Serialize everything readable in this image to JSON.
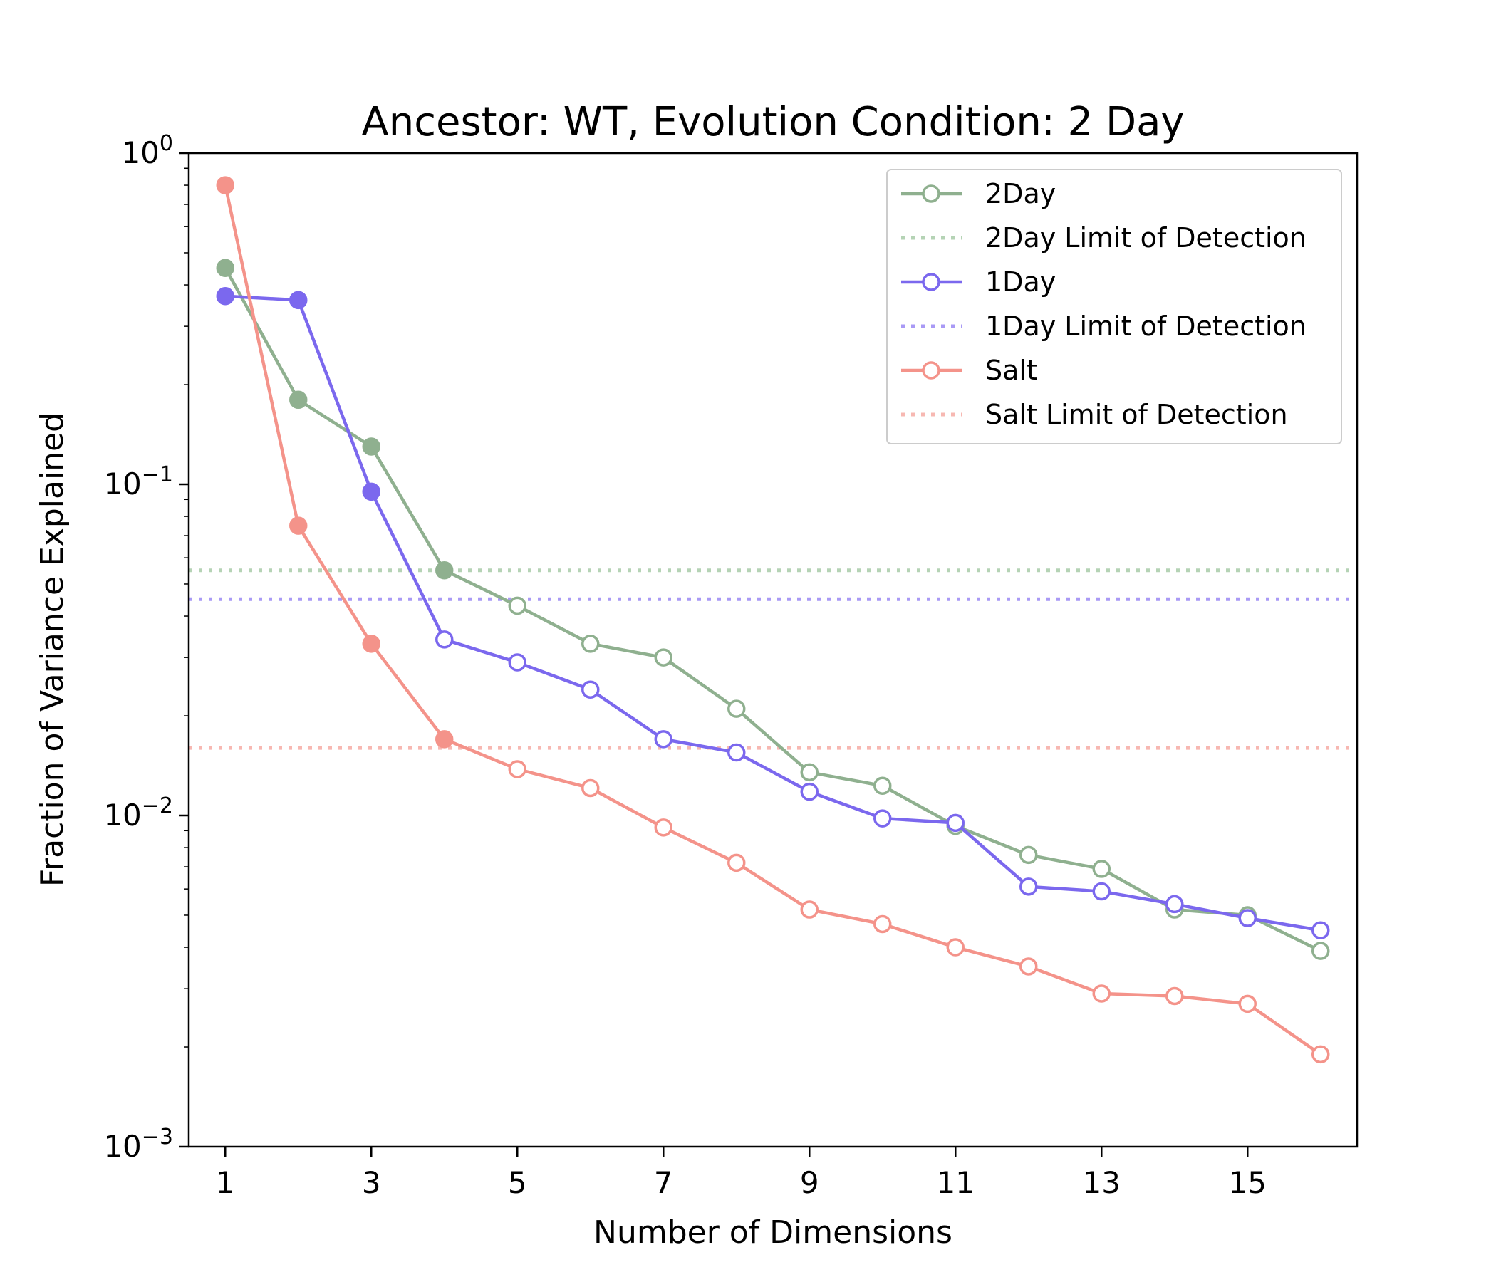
{
  "chart_data": {
    "type": "line",
    "title": "Ancestor: WT, Evolution Condition: 2 Day",
    "xlabel": "Number of Dimensions",
    "ylabel": "Fraction of Variance Explained",
    "yscale": "log",
    "ylim": [
      0.001,
      1
    ],
    "xlim": [
      0.5,
      16.5
    ],
    "xticks": [
      1,
      3,
      5,
      7,
      9,
      11,
      13,
      15
    ],
    "yticks": [
      {
        "value": 1,
        "base": "10",
        "exp": "0"
      },
      {
        "value": 0.1,
        "base": "10",
        "exp": "−1"
      },
      {
        "value": 0.01,
        "base": "10",
        "exp": "−2"
      },
      {
        "value": 0.001,
        "base": "10",
        "exp": "−3"
      }
    ],
    "legend_position": "top-right",
    "x": [
      1,
      2,
      3,
      4,
      5,
      6,
      7,
      8,
      9,
      10,
      11,
      12,
      13,
      14,
      15,
      16
    ],
    "series": [
      {
        "name": "2Day",
        "color": "#8fb08f",
        "values": [
          0.45,
          0.18,
          0.13,
          0.055,
          0.043,
          0.033,
          0.03,
          0.021,
          0.0135,
          0.0123,
          0.0093,
          0.0076,
          0.0069,
          0.0052,
          0.005,
          0.0039
        ],
        "filled_count": 4
      },
      {
        "name": "1Day",
        "color": "#7b68ee",
        "values": [
          0.37,
          0.36,
          0.095,
          0.034,
          0.029,
          0.024,
          0.017,
          0.0155,
          0.0118,
          0.0098,
          0.0095,
          0.0061,
          0.0059,
          0.0054,
          0.0049,
          0.0045
        ],
        "filled_count": 3
      },
      {
        "name": "Salt",
        "color": "#f4938a",
        "values": [
          0.8,
          0.075,
          0.033,
          0.017,
          0.0138,
          0.0121,
          0.0092,
          0.0072,
          0.0052,
          0.0047,
          0.004,
          0.0035,
          0.0029,
          0.00285,
          0.0027,
          0.0019
        ],
        "filled_count": 4
      }
    ],
    "limits_of_detection": [
      {
        "name": "2Day Limit of Detection",
        "color": "#b5d3b5",
        "value": 0.055
      },
      {
        "name": "1Day Limit of Detection",
        "color": "#a99af5",
        "value": 0.045
      },
      {
        "name": "Salt Limit of Detection",
        "color": "#f7b8b2",
        "value": 0.016
      }
    ]
  }
}
